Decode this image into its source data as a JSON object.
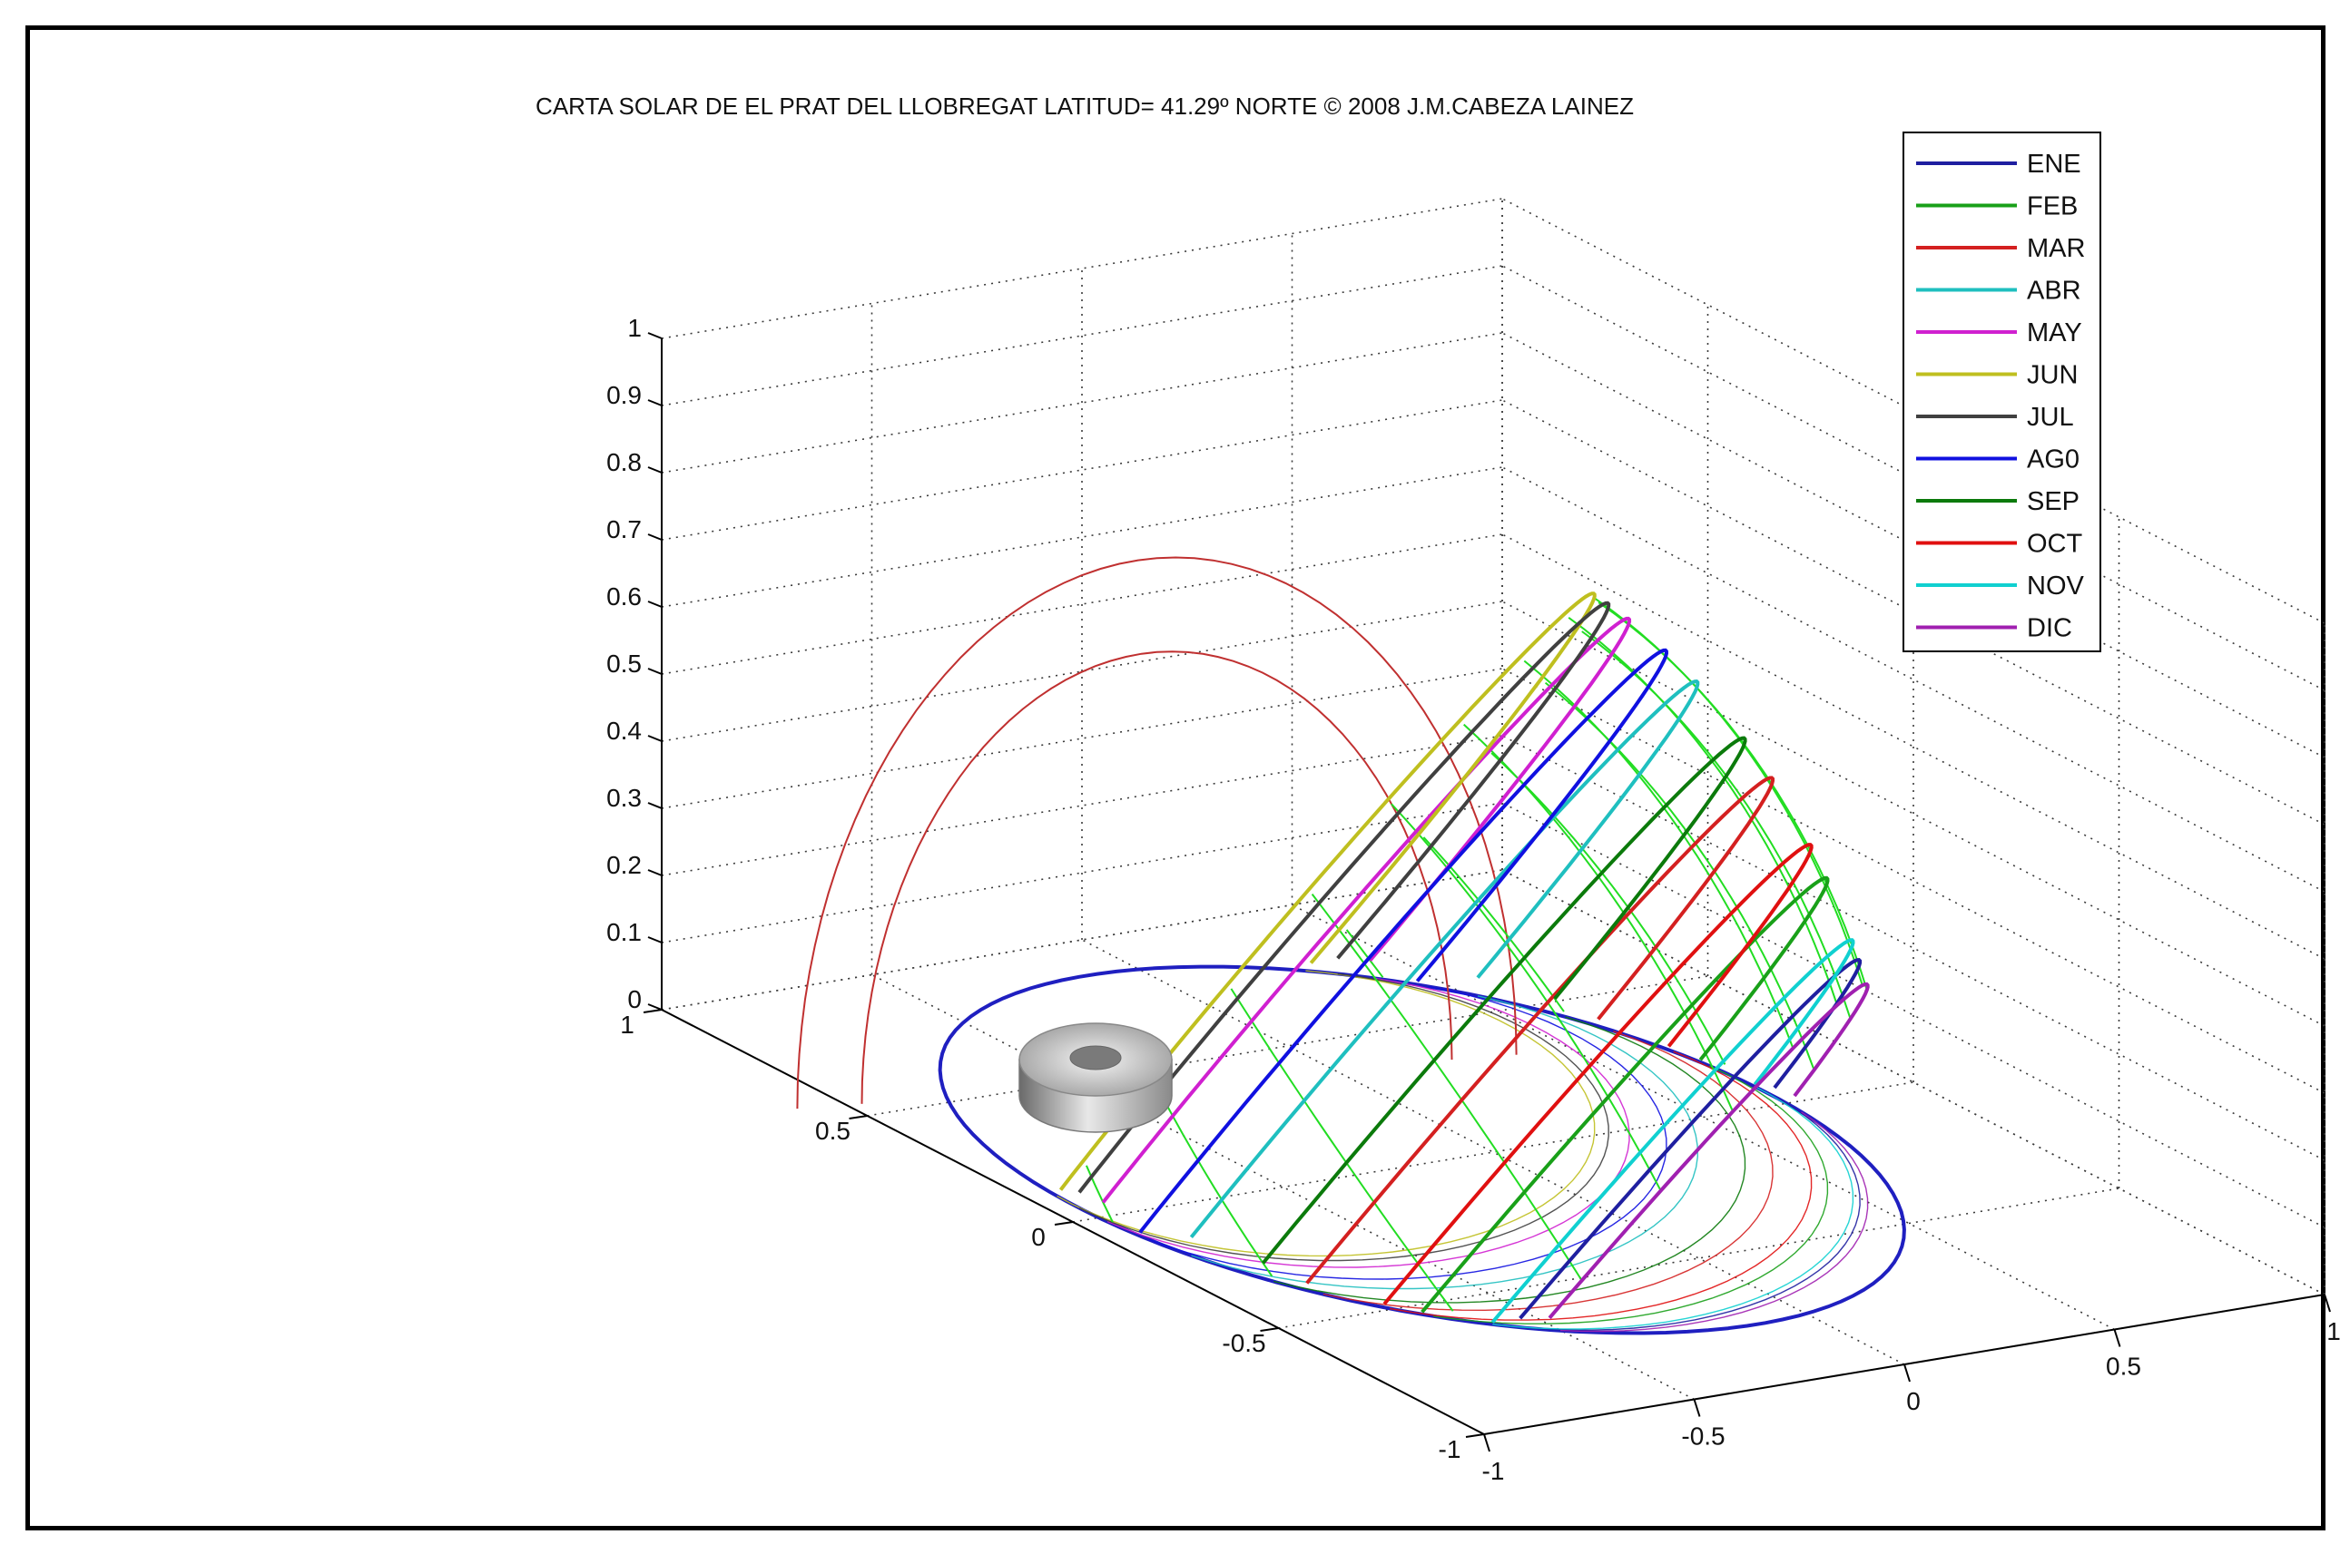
{
  "chart_data": {
    "type": "line",
    "title": "CARTA SOLAR DE EL PRAT DEL LLOBREGAT LATITUD= 41.29º NORTE  © 2008 J.M.CABEZA LAINEZ",
    "latitude_deg": 41.29,
    "projection": "3d",
    "grid": true,
    "legend_position": "top-right",
    "zlim": [
      0,
      1
    ],
    "xlim": [
      -1,
      1
    ],
    "ylim": [
      -1,
      1
    ],
    "z_ticks": [
      "0",
      "0.1",
      "0.2",
      "0.3",
      "0.4",
      "0.5",
      "0.6",
      "0.7",
      "0.8",
      "0.9",
      "1"
    ],
    "x_ticks": [
      "-1",
      "-0.5",
      "0",
      "0.5",
      "1"
    ],
    "y_ticks": [
      "-1",
      "-0.5",
      "0",
      "0.5",
      "1"
    ],
    "series": [
      {
        "name": "ENE",
        "color": "#1f1fa0",
        "declination_deg": -21.0
      },
      {
        "name": "FEB",
        "color": "#19a019",
        "declination_deg": -13.0
      },
      {
        "name": "MAR",
        "color": "#d42020",
        "declination_deg": -2.4
      },
      {
        "name": "ABR",
        "color": "#1fbfbf",
        "declination_deg": 9.4
      },
      {
        "name": "MAY",
        "color": "#d020d0",
        "declination_deg": 18.8
      },
      {
        "name": "JUN",
        "color": "#bfbf1f",
        "declination_deg": 23.3
      },
      {
        "name": "JUL",
        "color": "#404040",
        "declination_deg": 21.5
      },
      {
        "name": "AG0",
        "color": "#1010e0",
        "declination_deg": 13.8
      },
      {
        "name": "SEP",
        "color": "#0b7a0b",
        "declination_deg": 2.2
      },
      {
        "name": "OCT",
        "color": "#e01010",
        "declination_deg": -9.6
      },
      {
        "name": "NOV",
        "color": "#10d0d0",
        "declination_deg": -19.1
      },
      {
        "name": "DIC",
        "color": "#a020b0",
        "declination_deg": -23.3
      }
    ],
    "hour_lines_color": "#22dd22",
    "reference_arcs_color": "#c03030",
    "horizon_color": "#1f1fc0"
  }
}
